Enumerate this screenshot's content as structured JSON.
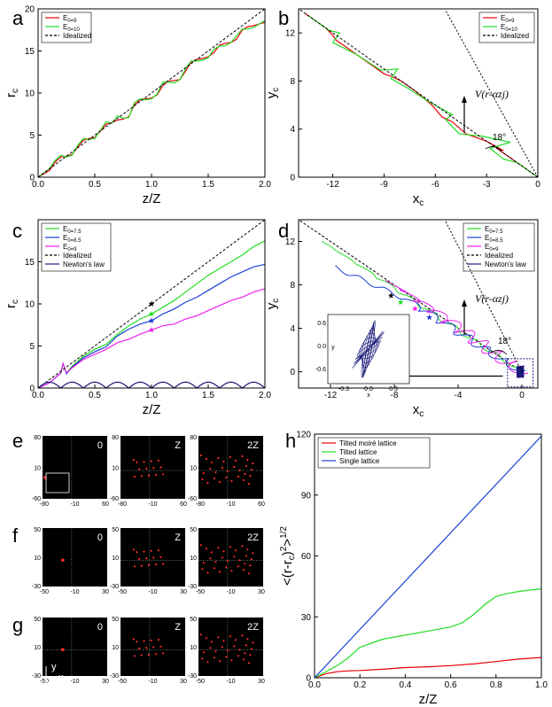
{
  "chart_data": [
    {
      "panel": "a",
      "type": "line",
      "xlabel": "z/Z",
      "ylabel": "r_c",
      "xlim": [
        0,
        2
      ],
      "ylim": [
        0,
        20
      ],
      "xticks": [
        "0.0",
        "0.5",
        "1.0",
        "1.5",
        "2.0"
      ],
      "yticks": [
        "0",
        "5",
        "10",
        "15",
        "20"
      ],
      "legend": "top-left",
      "series": [
        {
          "name": "E0=9",
          "color": "#e8000b",
          "style": "solid",
          "x": [
            0,
            0.1,
            0.15,
            0.2,
            0.25,
            0.3,
            0.35,
            0.4,
            0.45,
            0.5,
            0.55,
            0.6,
            0.65,
            0.7,
            0.75,
            0.8,
            0.85,
            0.9,
            0.95,
            1.0,
            1.05,
            1.1,
            1.15,
            1.2,
            1.25,
            1.3,
            1.35,
            1.4,
            1.45,
            1.5,
            1.55,
            1.6,
            1.65,
            1.7,
            1.75,
            1.8,
            1.85,
            1.9,
            1.95,
            2.0
          ],
          "y": [
            0,
            0.8,
            1.8,
            2.4,
            2.5,
            2.7,
            3.6,
            4.4,
            4.6,
            4.7,
            5.5,
            6.3,
            6.5,
            6.8,
            6.9,
            7.2,
            8.6,
            9.2,
            9.3,
            9.4,
            9.8,
            10.9,
            11.4,
            11.5,
            11.6,
            12.6,
            13.7,
            14.0,
            14.1,
            14.3,
            14.8,
            15.7,
            15.9,
            16.0,
            16.4,
            17.5,
            17.9,
            18.0,
            18.2,
            18.4
          ]
        },
        {
          "name": "E0=10",
          "color": "#22dd22",
          "style": "solid",
          "x": [
            0,
            0.1,
            0.15,
            0.2,
            0.25,
            0.3,
            0.35,
            0.4,
            0.45,
            0.5,
            0.55,
            0.6,
            0.65,
            0.7,
            0.75,
            0.8,
            0.85,
            0.9,
            0.95,
            1.0,
            1.05,
            1.1,
            1.15,
            1.2,
            1.25,
            1.3,
            1.35,
            1.4,
            1.45,
            1.5,
            1.55,
            1.6,
            1.65,
            1.7,
            1.75,
            1.8,
            1.85,
            1.9,
            1.95,
            2.0
          ],
          "y": [
            0,
            1.0,
            2.0,
            2.6,
            2.4,
            2.6,
            3.8,
            4.6,
            4.5,
            4.6,
            5.6,
            6.6,
            6.4,
            7.3,
            7.0,
            7.1,
            8.9,
            9.3,
            9.2,
            9.3,
            9.9,
            11.3,
            11.3,
            11.2,
            11.6,
            12.9,
            13.8,
            13.8,
            13.9,
            14.2,
            15.2,
            15.6,
            15.6,
            16.0,
            16.8,
            17.6,
            17.6,
            17.8,
            18.2,
            18.6
          ]
        },
        {
          "name": "Idealized",
          "color": "#000000",
          "style": "dashed",
          "x": [
            0,
            2
          ],
          "y": [
            0,
            20
          ]
        }
      ]
    },
    {
      "panel": "b",
      "type": "line",
      "xlabel": "x_c",
      "ylabel": "y_c",
      "xlim": [
        -14,
        0
      ],
      "ylim": [
        0,
        14
      ],
      "xticks": [
        "-12",
        "-9",
        "-6",
        "-3",
        "0"
      ],
      "yticks": [
        "0",
        "4",
        "8",
        "12"
      ],
      "legend": "top-right",
      "series": [
        {
          "name": "E0=9",
          "color": "#e8000b",
          "style": "solid",
          "x": [
            0,
            -1,
            -1.8,
            -2.4,
            -2.0,
            -3.0,
            -4.2,
            -5.0,
            -5.6,
            -6.2,
            -7.2,
            -8.0,
            -8.6,
            -9.0,
            -10.2,
            -11.2,
            -11.8,
            -12.0,
            -12.4,
            -13.0,
            -13.6
          ],
          "y": [
            0,
            1.0,
            1.8,
            2.4,
            2.2,
            3.0,
            3.6,
            4.6,
            5.0,
            6.0,
            7.2,
            8.0,
            8.4,
            8.6,
            9.8,
            10.8,
            11.4,
            11.8,
            12.4,
            13.0,
            13.6
          ]
        },
        {
          "name": "E0=10",
          "color": "#22dd22",
          "style": "solid",
          "x": [
            0,
            -1.2,
            -2.0,
            -2.8,
            -1.6,
            -3.2,
            -4.6,
            -5.4,
            -5.0,
            -6.4,
            -7.6,
            -8.6,
            -8.2,
            -9.2,
            -10.6,
            -12.0,
            -11.6,
            -12.2,
            -12.8,
            -13.4
          ],
          "y": [
            0,
            1.2,
            1.5,
            2.4,
            2.9,
            3.4,
            3.6,
            4.8,
            5.2,
            6.3,
            7.4,
            8.2,
            9.0,
            8.9,
            10.2,
            11.2,
            12.0,
            12.2,
            12.8,
            13.4
          ]
        },
        {
          "name": "Idealized",
          "color": "#000000",
          "style": "dashed",
          "x": [
            0,
            -14
          ],
          "y": [
            0,
            14
          ]
        }
      ],
      "annotations": [
        "V(r-αzj)",
        "18°"
      ]
    },
    {
      "panel": "c",
      "type": "line",
      "xlabel": "z/Z",
      "ylabel": "r_c",
      "xlim": [
        0,
        2
      ],
      "ylim": [
        0,
        20
      ],
      "xticks": [
        "0.0",
        "0.5",
        "1.0",
        "1.5",
        "2.0"
      ],
      "yticks": [
        "0",
        "5",
        "10",
        "15"
      ],
      "legend": "top-left",
      "series": [
        {
          "name": "E0=7.5",
          "color": "#22dd22",
          "style": "solid",
          "x": [
            0,
            0.1,
            0.2,
            0.22,
            0.25,
            0.3,
            0.4,
            0.5,
            0.6,
            0.7,
            0.75,
            0.8,
            0.9,
            1.0,
            1.1,
            1.2,
            1.3,
            1.4,
            1.5,
            1.6,
            1.7,
            1.8,
            1.9,
            2.0
          ],
          "y": [
            0,
            0.6,
            1.8,
            2.9,
            1.8,
            2.6,
            3.8,
            4.6,
            5.2,
            6.4,
            6.9,
            7.4,
            8.2,
            8.8,
            9.6,
            10.4,
            11.4,
            12.4,
            13.4,
            14.2,
            15.0,
            15.8,
            16.8,
            17.5
          ]
        },
        {
          "name": "E0=8.5",
          "color": "#1a3fd6",
          "style": "solid",
          "x": [
            0,
            0.1,
            0.2,
            0.22,
            0.25,
            0.3,
            0.4,
            0.5,
            0.6,
            0.7,
            0.75,
            0.8,
            0.9,
            1.0,
            1.1,
            1.2,
            1.3,
            1.4,
            1.5,
            1.6,
            1.7,
            1.8,
            1.9,
            2.0
          ],
          "y": [
            0,
            0.6,
            1.8,
            2.9,
            1.7,
            2.5,
            3.6,
            4.3,
            4.9,
            6.2,
            6.6,
            7.0,
            7.6,
            8.0,
            8.8,
            9.4,
            10.2,
            10.8,
            11.6,
            12.4,
            13.2,
            13.8,
            14.4,
            14.7
          ]
        },
        {
          "name": "E0=9",
          "color": "#ee22ee",
          "style": "solid",
          "x": [
            0,
            0.1,
            0.2,
            0.22,
            0.25,
            0.3,
            0.4,
            0.5,
            0.6,
            0.7,
            0.75,
            0.8,
            0.9,
            1.0,
            1.1,
            1.2,
            1.3,
            1.4,
            1.5,
            1.6,
            1.7,
            1.8,
            1.9,
            2.0
          ],
          "y": [
            0,
            0.6,
            1.8,
            2.9,
            1.8,
            2.4,
            3.4,
            4.0,
            4.6,
            5.4,
            5.6,
            5.8,
            6.4,
            6.9,
            7.4,
            7.6,
            8.2,
            8.6,
            9.2,
            9.8,
            10.4,
            10.8,
            11.4,
            11.8
          ]
        },
        {
          "name": "Idealized",
          "color": "#000000",
          "style": "dashed",
          "x": [
            0,
            2
          ],
          "y": [
            0,
            20
          ]
        },
        {
          "name": "Newton's law",
          "color": "#1a1a7a",
          "style": "solid",
          "oscillating": true,
          "amplitude": 0.7,
          "period": 0.2
        }
      ],
      "markers": [
        {
          "x": 1.0,
          "y": 10.0,
          "color": "#000000",
          "shape": "star"
        },
        {
          "x": 1.0,
          "y": 8.8,
          "color": "#22dd22",
          "shape": "star"
        },
        {
          "x": 1.0,
          "y": 8.0,
          "color": "#1a3fd6",
          "shape": "star"
        },
        {
          "x": 1.0,
          "y": 6.9,
          "color": "#ee22ee",
          "shape": "star"
        }
      ]
    },
    {
      "panel": "d",
      "type": "line",
      "xlabel": "x_c",
      "ylabel": "y_c",
      "xlim": [
        -14,
        1
      ],
      "ylim": [
        -1.5,
        14
      ],
      "xticks": [
        "-12",
        "-8",
        "-4",
        "0"
      ],
      "yticks": [
        "0",
        "4",
        "8",
        "12"
      ],
      "legend": "top-right",
      "series": [
        {
          "name": "E0=7.5",
          "color": "#22dd22",
          "style": "solid"
        },
        {
          "name": "E0=8.5",
          "color": "#1a3fd6",
          "style": "solid"
        },
        {
          "name": "E0=9",
          "color": "#ee22ee",
          "style": "solid"
        },
        {
          "name": "Idealized",
          "color": "#000000",
          "style": "dashed"
        },
        {
          "name": "Newton's law",
          "color": "#1a1a7a",
          "style": "solid"
        }
      ],
      "annotations": [
        "V(r-αzj)",
        "18°"
      ],
      "inset": {
        "xlabel": "x",
        "ylabel": "y",
        "xticks": [
          "-0.3",
          "0.0",
          "0.3"
        ],
        "yticks": [
          "0.6",
          "0.0",
          "-0.6"
        ]
      }
    },
    {
      "panel": "h",
      "type": "line",
      "xlabel": "z/Z",
      "ylabel": "<(r-rc)^2>^1/2",
      "xlim": [
        0,
        1
      ],
      "ylim": [
        0,
        120
      ],
      "xticks": [
        "0.0",
        "0.2",
        "0.4",
        "0.6",
        "0.8",
        "1.0"
      ],
      "yticks": [
        "0",
        "30",
        "60",
        "90",
        "120"
      ],
      "legend": "top-left",
      "series": [
        {
          "name": "Tilted moiré lattice",
          "color": "#e8000b",
          "style": "solid",
          "x": [
            0,
            0.05,
            0.1,
            0.15,
            0.2,
            0.3,
            0.4,
            0.5,
            0.6,
            0.7,
            0.8,
            0.9,
            1.0
          ],
          "y": [
            0,
            2.0,
            3.0,
            3.4,
            3.6,
            4.2,
            5.0,
            5.4,
            6.0,
            6.8,
            8.0,
            9.2,
            10.0
          ]
        },
        {
          "name": "Tilted lattice",
          "color": "#22dd22",
          "style": "solid",
          "x": [
            0,
            0.05,
            0.1,
            0.15,
            0.2,
            0.25,
            0.3,
            0.4,
            0.5,
            0.6,
            0.65,
            0.7,
            0.75,
            0.8,
            0.85,
            0.9,
            0.95,
            1.0
          ],
          "y": [
            0,
            3,
            6,
            10,
            15,
            17,
            19,
            21,
            23,
            25,
            27,
            31,
            36,
            40,
            41.5,
            42.5,
            43.2,
            43.8
          ]
        },
        {
          "name": "Single lattice",
          "color": "#1a3fd6",
          "style": "solid",
          "x": [
            0,
            1
          ],
          "y": [
            0,
            119
          ]
        }
      ]
    }
  ],
  "panels": {
    "a": "a",
    "b": "b",
    "c": "c",
    "d": "d",
    "e": "e",
    "f": "f",
    "g": "g",
    "h": "h"
  },
  "image_panels": {
    "row_e": {
      "yticks": [
        "80",
        "10",
        "-60"
      ],
      "xticks": [
        "-80",
        "-10",
        "60"
      ],
      "labels": [
        "0",
        "Z",
        "2Z"
      ]
    },
    "row_f": {
      "yticks": [
        "50",
        "10",
        "-30"
      ],
      "xticks": [
        "-50",
        "-10",
        "30"
      ],
      "labels": [
        "0",
        "Z",
        "2Z"
      ]
    },
    "row_g": {
      "yticks": [
        "50",
        "10",
        "-30"
      ],
      "xticks": [
        "-50",
        "-10",
        "30"
      ],
      "labels": [
        "0",
        "Z",
        "2Z"
      ],
      "axis_hint": [
        "y",
        "x"
      ]
    }
  }
}
